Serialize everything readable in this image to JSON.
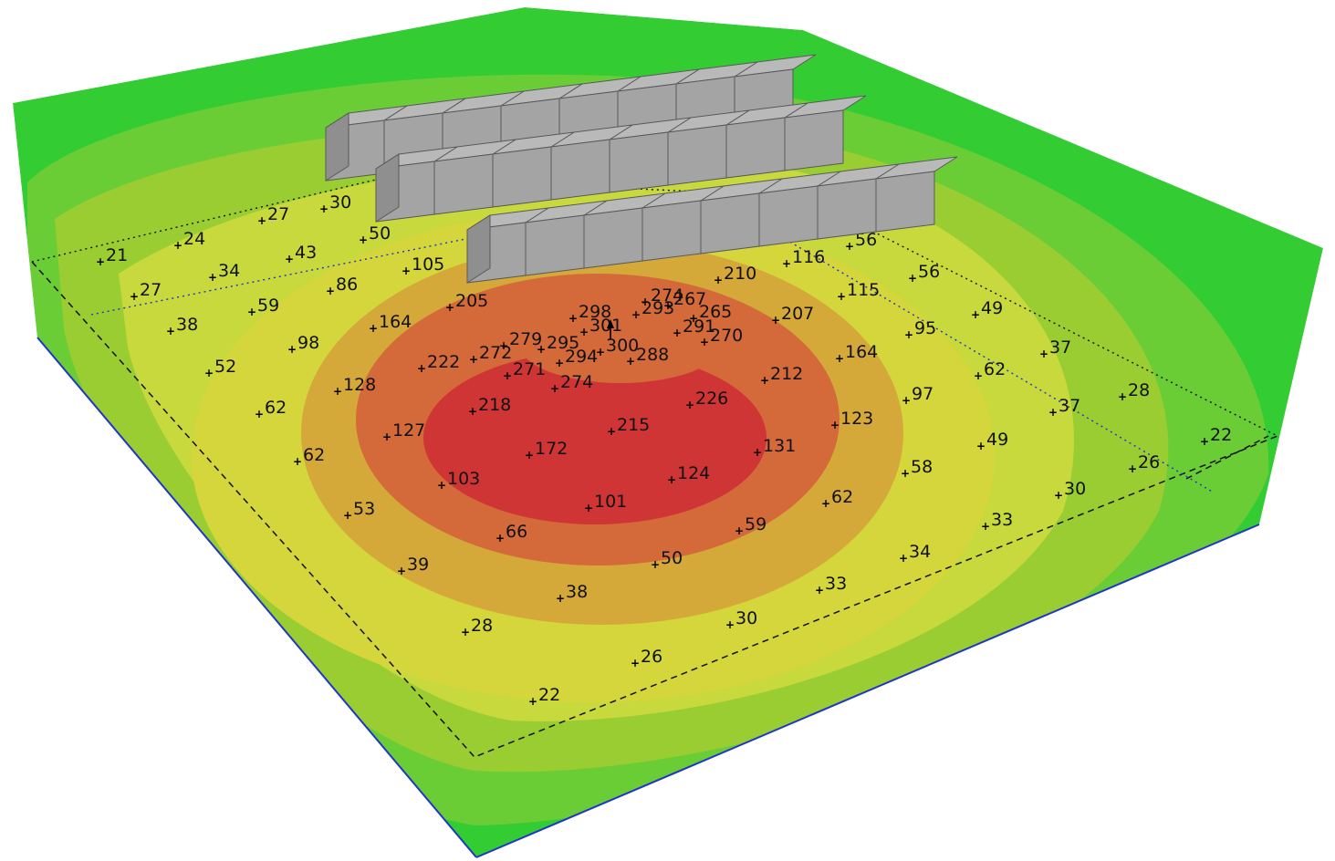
{
  "colors": {
    "background": "#ffffff",
    "edge_blue": "#1f35c8",
    "outer_green": "#33cc33",
    "bright_green": "#6acd36",
    "yellow_green": "#9acd32",
    "lime_yellow": "#c7d93c",
    "yellow": "#d4d63b",
    "orange_yellow": "#d5a83a",
    "orange": "#d4693a",
    "red": "#d03535",
    "box_top": "#b9b9b9",
    "box_front": "#a4a4a4",
    "box_side": "#8f8f8f",
    "box_edge": "#5a5a5a"
  },
  "chart_data": {
    "type": "heatmap",
    "view": "3d-perspective",
    "obstacle_rows": [
      8,
      8,
      8
    ],
    "point_values": [
      {
        "v": "30",
        "x": 0.49,
        "y": 0.02
      },
      {
        "v": "27",
        "x": 0.39,
        "y": 0.05
      },
      {
        "v": "24",
        "x": 0.26,
        "y": 0.09
      },
      {
        "v": "21",
        "x": 0.13,
        "y": 0.11
      },
      {
        "v": "50",
        "x": 0.55,
        "y": 0.12
      },
      {
        "v": "43",
        "x": 0.43,
        "y": 0.15
      },
      {
        "v": "34",
        "x": 0.31,
        "y": 0.19
      },
      {
        "v": "27",
        "x": 0.16,
        "y": 0.24
      },
      {
        "v": "105",
        "x": 0.6,
        "y": 0.25
      },
      {
        "v": "86",
        "x": 0.49,
        "y": 0.29
      },
      {
        "v": "59",
        "x": 0.37,
        "y": 0.33
      },
      {
        "v": "38",
        "x": 0.22,
        "y": 0.36
      },
      {
        "v": "205",
        "x": 0.66,
        "y": 0.37
      },
      {
        "v": "164",
        "x": 0.55,
        "y": 0.4
      },
      {
        "v": "98",
        "x": 0.43,
        "y": 0.45
      },
      {
        "v": "52",
        "x": 0.28,
        "y": 0.49
      },
      {
        "v": "222",
        "x": 0.61,
        "y": 0.49
      },
      {
        "v": "128",
        "x": 0.49,
        "y": 0.56
      },
      {
        "v": "62",
        "x": 0.34,
        "y": 0.61
      },
      {
        "v": "218",
        "x": 0.68,
        "y": 0.57
      },
      {
        "v": "127",
        "x": 0.56,
        "y": 0.66
      },
      {
        "v": "62",
        "x": 0.41,
        "y": 0.72
      },
      {
        "v": "103",
        "x": 0.63,
        "y": 0.77
      },
      {
        "v": "53",
        "x": 0.48,
        "y": 0.83
      },
      {
        "v": "66",
        "x": 0.7,
        "y": 0.86
      },
      {
        "v": "39",
        "x": 0.55,
        "y": 0.92
      },
      {
        "v": "38",
        "x": 0.77,
        "y": 0.95
      },
      {
        "v": "28",
        "x": 0.63,
        "y": 0.98
      },
      {
        "v": "26",
        "x": 0.83,
        "y": 0.99
      },
      {
        "v": "22",
        "x": 0.7,
        "y": 0.995
      },
      {
        "v": "30",
        "x": 0.93,
        "y": 0.97
      },
      {
        "v": "33",
        "x": 0.96,
        "y": 0.93
      },
      {
        "v": "34",
        "x": 0.98,
        "y": 0.86
      },
      {
        "v": "33",
        "x": 0.99,
        "y": 0.8
      },
      {
        "v": "30",
        "x": 0.995,
        "y": 0.72
      },
      {
        "v": "26",
        "x": 0.998,
        "y": 0.65
      },
      {
        "v": "22",
        "x": 0.999,
        "y": 0.6
      },
      {
        "v": "101",
        "x": 0.77,
        "y": 0.79
      },
      {
        "v": "50",
        "x": 0.83,
        "y": 0.85
      },
      {
        "v": "59",
        "x": 0.88,
        "y": 0.79
      },
      {
        "v": "62",
        "x": 0.92,
        "y": 0.72
      },
      {
        "v": "58",
        "x": 0.95,
        "y": 0.65
      },
      {
        "v": "49",
        "x": 0.97,
        "y": 0.58
      },
      {
        "v": "37",
        "x": 0.98,
        "y": 0.51
      },
      {
        "v": "28",
        "x": 0.99,
        "y": 0.47
      },
      {
        "v": "172",
        "x": 0.71,
        "y": 0.7
      },
      {
        "v": "124",
        "x": 0.82,
        "y": 0.7
      },
      {
        "v": "131",
        "x": 0.86,
        "y": 0.62
      },
      {
        "v": "123",
        "x": 0.89,
        "y": 0.55
      },
      {
        "v": "97",
        "x": 0.91,
        "y": 0.48
      },
      {
        "v": "62",
        "x": 0.94,
        "y": 0.43
      },
      {
        "v": "37",
        "x": 0.96,
        "y": 0.37
      },
      {
        "v": "215",
        "x": 0.78,
        "y": 0.62
      },
      {
        "v": "226",
        "x": 0.83,
        "y": 0.55
      },
      {
        "v": "212",
        "x": 0.85,
        "y": 0.47
      },
      {
        "v": "164",
        "x": 0.87,
        "y": 0.4
      },
      {
        "v": "95",
        "x": 0.88,
        "y": 0.34
      },
      {
        "v": "49",
        "x": 0.92,
        "y": 0.28
      },
      {
        "v": "274",
        "x": 0.74,
        "y": 0.55
      },
      {
        "v": "271",
        "x": 0.7,
        "y": 0.53
      },
      {
        "v": "272",
        "x": 0.66,
        "y": 0.5
      },
      {
        "v": "279",
        "x": 0.67,
        "y": 0.47
      },
      {
        "v": "295",
        "x": 0.7,
        "y": 0.47
      },
      {
        "v": "294",
        "x": 0.74,
        "y": 0.5
      },
      {
        "v": "300",
        "x": 0.77,
        "y": 0.48
      },
      {
        "v": "288",
        "x": 0.79,
        "y": 0.51
      },
      {
        "v": "301",
        "x": 0.74,
        "y": 0.44
      },
      {
        "v": "298",
        "x": 0.72,
        "y": 0.42
      },
      {
        "v": "293",
        "x": 0.77,
        "y": 0.4
      },
      {
        "v": "291",
        "x": 0.8,
        "y": 0.44
      },
      {
        "v": "270",
        "x": 0.82,
        "y": 0.46
      },
      {
        "v": "265",
        "x": 0.81,
        "y": 0.41
      },
      {
        "v": "267",
        "x": 0.79,
        "y": 0.38
      },
      {
        "v": "274",
        "x": 0.76,
        "y": 0.36
      },
      {
        "v": "210",
        "x": 0.8,
        "y": 0.33
      },
      {
        "v": "207",
        "x": 0.85,
        "y": 0.39
      },
      {
        "v": "116",
        "x": 0.84,
        "y": 0.29
      },
      {
        "v": "115",
        "x": 0.87,
        "y": 0.31
      },
      {
        "v": "56",
        "x": 0.87,
        "y": 0.24
      },
      {
        "v": "56",
        "x": 0.91,
        "y": 0.25
      }
    ]
  }
}
